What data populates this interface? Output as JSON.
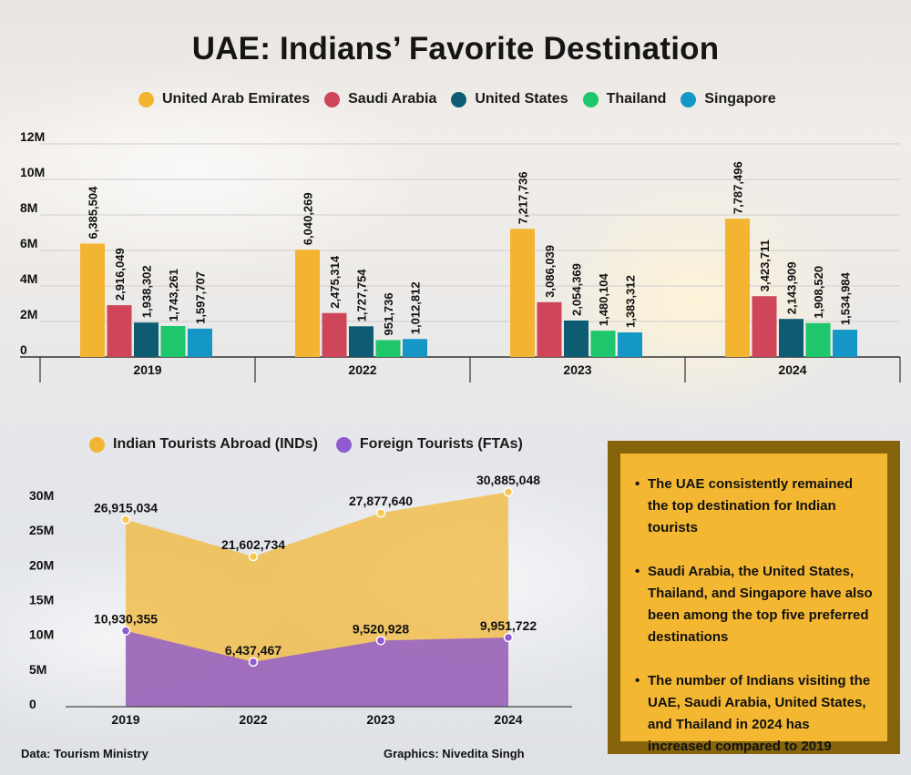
{
  "title": "UAE: Indians’ Favorite Destination",
  "chart_data": [
    {
      "type": "bar",
      "categories": [
        "2019",
        "2022",
        "2023",
        "2024"
      ],
      "series": [
        {
          "name": "United Arab Emirates",
          "color": "#f3b531",
          "values": [
            6385504,
            6040269,
            7217736,
            7787496
          ],
          "labels": [
            "6,385,504",
            "6,040,269",
            "7,217,736",
            "7,787,496"
          ]
        },
        {
          "name": "Saudi Arabia",
          "color": "#cf4559",
          "values": [
            2916049,
            2475314,
            3086039,
            3423711
          ],
          "labels": [
            "2,916,049",
            "2,475,314",
            "3,086,039",
            "3,423,711"
          ]
        },
        {
          "name": "United States",
          "color": "#0d5c74",
          "values": [
            1938302,
            1727754,
            2054369,
            2143909
          ],
          "labels": [
            "1,938,302",
            "1,727,754",
            "2,054,369",
            "2,143,909"
          ]
        },
        {
          "name": "Thailand",
          "color": "#1ec76b",
          "values": [
            1743261,
            951736,
            1480104,
            1908520
          ],
          "labels": [
            "1,743,261",
            "951,736",
            "1,480,104",
            "1,908,520"
          ]
        },
        {
          "name": "Singapore",
          "color": "#1497c7",
          "values": [
            1597707,
            1012812,
            1383312,
            1534984
          ],
          "labels": [
            "1,597,707",
            "1,012,812",
            "1,383,312",
            "1,534,984"
          ]
        }
      ],
      "yticks": [
        "0",
        "2M",
        "4M",
        "6M",
        "8M",
        "10M",
        "12M"
      ],
      "ylim": [
        0,
        12000000
      ],
      "grid": true,
      "legend": "top"
    },
    {
      "type": "area",
      "x": [
        "2019",
        "2022",
        "2023",
        "2024"
      ],
      "series": [
        {
          "name": "Indian Tourists Abroad (INDs)",
          "color": "#f3b531",
          "values": [
            26915034,
            21602734,
            27877640,
            30885048
          ],
          "labels": [
            "26,915,034",
            "21,602,734",
            "27,877,640",
            "30,885,048"
          ]
        },
        {
          "name": "Foreign Tourists (FTAs)",
          "color": "#8f5cd0",
          "values": [
            10930355,
            6437467,
            9520928,
            9951722
          ],
          "labels": [
            "10,930,355",
            "6,437,467",
            "9,520,928",
            "9,951,722"
          ]
        }
      ],
      "yticks": [
        "0",
        "5M",
        "10M",
        "15M",
        "20M",
        "25M",
        "30M"
      ],
      "ylim": [
        0,
        30000000
      ],
      "grid": false,
      "legend": "top"
    }
  ],
  "notes": [
    "The UAE consistently remained the top destination for Indian tourists",
    "Saudi Arabia, the United States, Thailand, and Singapore have also been among the top five preferred destinations",
    "The number of Indians visiting the UAE, Saudi Arabia, United States, and Thailand in 2024 has increased compared to 2019"
  ],
  "source": "Data: Tourism Ministry",
  "credit": "Graphics: Nivedita Singh"
}
